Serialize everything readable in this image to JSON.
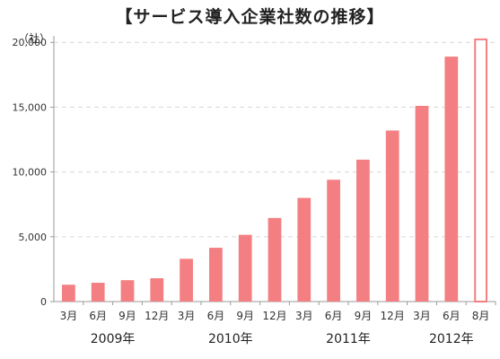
{
  "chart_data": {
    "type": "bar",
    "title": "【サービス導入企業社数の推移】",
    "unit_label": "（社）",
    "categories": [
      "3月",
      "6月",
      "9月",
      "12月",
      "3月",
      "6月",
      "9月",
      "12月",
      "3月",
      "6月",
      "9月",
      "12月",
      "3月",
      "6月",
      "8月"
    ],
    "years": [
      {
        "label": "2009年",
        "start": 0,
        "end": 3
      },
      {
        "label": "2010年",
        "start": 4,
        "end": 7
      },
      {
        "label": "2011年",
        "start": 8,
        "end": 11
      },
      {
        "label": "2012年",
        "start": 12,
        "end": 14
      }
    ],
    "values": [
      1300,
      1450,
      1650,
      1800,
      3300,
      4150,
      5150,
      6450,
      8000,
      9400,
      10950,
      13200,
      15100,
      18900,
      20300
    ],
    "highlighted_last": true,
    "ylim": [
      0,
      20500
    ],
    "yticks": [
      0,
      5000,
      10000,
      15000,
      20000
    ],
    "ytick_labels": [
      "0",
      "5,000",
      "10,000",
      "15,000",
      "20,000"
    ],
    "grid": true,
    "colors": {
      "bar": "#f47f82",
      "highlight_edge": "#f47f82",
      "highlight_fill": "#ffffff",
      "grid": "#d8d8d8",
      "axis": "#999999"
    }
  }
}
